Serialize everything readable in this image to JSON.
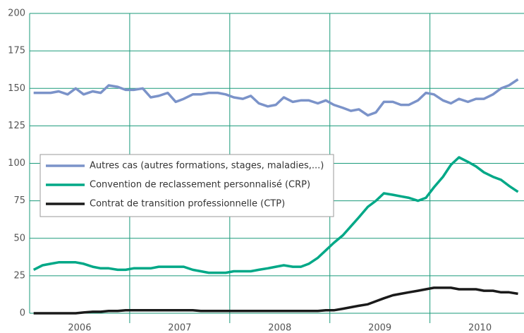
{
  "chart_data": {
    "type": "line",
    "series": [
      {
        "name": "Autres cas (autres formations, stages, maladies,...)",
        "color": "#7b93c9",
        "values": [
          147,
          147,
          147,
          148,
          146,
          150,
          146,
          148,
          147,
          152,
          151,
          149,
          149,
          150,
          144,
          145,
          147,
          141,
          143,
          146,
          146,
          147,
          147,
          146,
          144,
          143,
          145,
          140,
          138,
          139,
          144,
          141,
          142,
          142,
          140,
          142,
          139,
          137,
          135,
          136,
          132,
          134,
          141,
          141,
          139,
          139,
          142,
          147,
          146,
          142,
          140,
          143,
          141,
          143,
          143,
          146,
          150,
          152,
          156
        ]
      },
      {
        "name": "Convention de reclassement personnalisé (CRP)",
        "color": "#00a887",
        "values": [
          29,
          32,
          33,
          34,
          34,
          34,
          33,
          31,
          30,
          30,
          29,
          29,
          30,
          30,
          30,
          31,
          31,
          31,
          31,
          29,
          28,
          27,
          27,
          27,
          28,
          28,
          28,
          29,
          30,
          31,
          32,
          31,
          31,
          33,
          37,
          42,
          47,
          52,
          58,
          64,
          71,
          75,
          80,
          79,
          78,
          77,
          75,
          77,
          84,
          91,
          99,
          104,
          101,
          98,
          94,
          91,
          89,
          85,
          81
        ]
      },
      {
        "name": "Contrat de transition professionnelle (CTP)",
        "color": "#1a1a1a",
        "values": [
          0,
          0,
          0,
          0,
          0,
          0,
          0.5,
          1,
          1,
          1.5,
          1.5,
          2,
          2,
          2,
          2,
          2,
          2,
          2,
          2,
          2,
          1.5,
          1.5,
          1.5,
          1.5,
          1.5,
          1.5,
          1.5,
          1.5,
          1.5,
          1.5,
          1.5,
          1.5,
          1.5,
          1.5,
          1.5,
          2,
          2,
          3,
          4,
          5,
          6,
          8,
          10,
          12,
          13,
          14,
          15,
          16,
          17,
          17,
          17,
          16,
          16,
          16,
          15,
          15,
          14,
          14,
          13
        ]
      }
    ],
    "x": [
      2006.04,
      2006.13,
      2006.21,
      2006.29,
      2006.38,
      2006.46,
      2006.54,
      2006.63,
      2006.71,
      2006.79,
      2006.88,
      2006.96,
      2007.04,
      2007.13,
      2007.21,
      2007.29,
      2007.38,
      2007.46,
      2007.54,
      2007.63,
      2007.71,
      2007.79,
      2007.88,
      2007.96,
      2008.04,
      2008.13,
      2008.21,
      2008.29,
      2008.38,
      2008.46,
      2008.54,
      2008.63,
      2008.71,
      2008.79,
      2008.88,
      2008.96,
      2009.04,
      2009.13,
      2009.21,
      2009.29,
      2009.38,
      2009.46,
      2009.54,
      2009.63,
      2009.71,
      2009.79,
      2009.88,
      2009.96,
      2010.04,
      2010.13,
      2010.21,
      2010.29,
      2010.38,
      2010.46,
      2010.54,
      2010.63,
      2010.71,
      2010.79,
      2010.88
    ],
    "xlim": [
      2006,
      2010.94
    ],
    "xticks": [
      2007,
      2008,
      2009,
      2010
    ],
    "year_labels": [
      {
        "value": 2006.5,
        "label": "2006"
      },
      {
        "value": 2007.5,
        "label": "2007"
      },
      {
        "value": 2008.5,
        "label": "2008"
      },
      {
        "value": 2009.5,
        "label": "2009"
      },
      {
        "value": 2010.5,
        "label": "2010"
      }
    ],
    "ylim": [
      0,
      200
    ],
    "yticks": [
      0,
      25,
      50,
      75,
      100,
      125,
      150,
      175,
      200
    ],
    "grid": true,
    "grid_color": "#1a9a7a",
    "legend": "left"
  }
}
